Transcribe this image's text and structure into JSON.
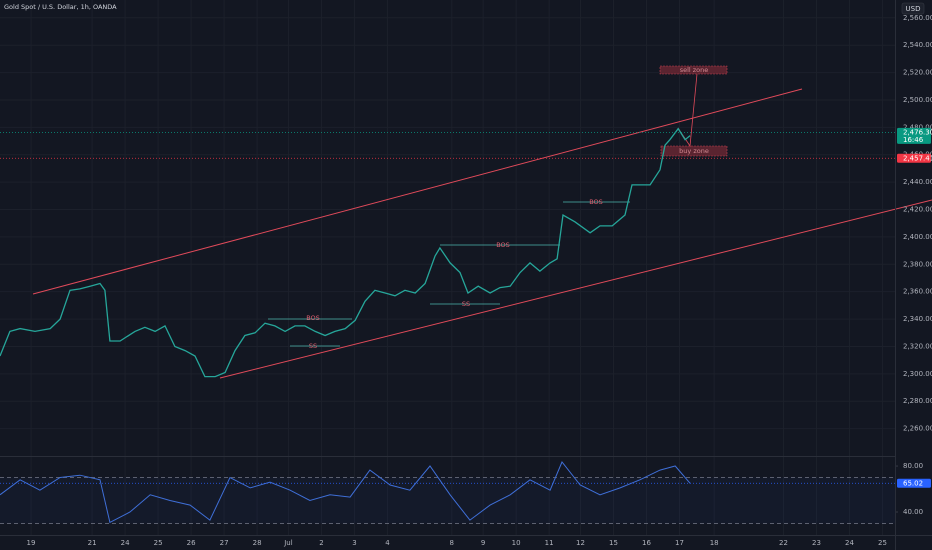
{
  "header": {
    "title": "Gold Spot / U.S. Dollar, 1h, OANDA",
    "currency": "USD"
  },
  "annotations": {
    "bos": [
      "BOS",
      "BOS",
      "BOS"
    ],
    "ss": [
      "SS",
      "SS"
    ],
    "sell_zone": "sell zone",
    "buy_zone": "buy zone",
    "countdown": "16:46"
  },
  "chart_data": [
    {
      "type": "line",
      "color": "#26a69a",
      "grid": true,
      "x": [
        -0.94,
        -0.64,
        -0.33,
        0.12,
        0.58,
        0.88,
        1.18,
        1.48,
        1.79,
        2.09,
        2.24,
        2.39,
        2.7,
        3.15,
        3.45,
        3.76,
        4.06,
        4.36,
        4.67,
        4.97,
        5.27,
        5.58,
        5.88,
        6.18,
        6.48,
        6.79,
        7.09,
        7.39,
        7.7,
        8,
        8.3,
        8.61,
        8.91,
        9.21,
        9.52,
        9.82,
        10.12,
        10.42,
        10.73,
        11.03,
        11.33,
        11.64,
        11.94,
        12.24,
        12.39,
        12.7,
        13,
        13.24,
        13.55,
        13.91,
        14.21,
        14.52,
        14.82,
        15.12,
        15.42,
        15.73,
        15.94,
        16.12,
        16.48,
        16.94,
        17.24,
        17.61,
        18,
        18.21,
        18.45,
        18.76,
        19.06,
        19.21,
        19.36,
        19.61,
        19.82,
        19.97
      ],
      "values": [
        2313,
        2331,
        2333,
        2331,
        2333,
        2340,
        2361,
        2362,
        2364,
        2366,
        2361,
        2324,
        2324,
        2331,
        2334,
        2331,
        2335,
        2320,
        2317,
        2313,
        2298,
        2298,
        2301,
        2317,
        2328,
        2330,
        2337,
        2335,
        2331,
        2335,
        2335,
        2331,
        2328,
        2331,
        2333,
        2339,
        2353,
        2361,
        2359,
        2357,
        2361,
        2359,
        2366,
        2386,
        2392,
        2381,
        2374,
        2359,
        2364,
        2359,
        2363,
        2364,
        2374,
        2381,
        2375,
        2381,
        2384,
        2416,
        2411,
        2403,
        2408,
        2408,
        2416,
        2438,
        2438,
        2438,
        2449,
        2467,
        2471,
        2479,
        2471,
        2474
      ],
      "xlim": [
        -0.94,
        26.18
      ],
      "xticks": [
        {
          "value": 0,
          "label": "19"
        },
        {
          "value": 1.85,
          "label": "21"
        },
        {
          "value": 2.85,
          "label": "24"
        },
        {
          "value": 3.85,
          "label": "25"
        },
        {
          "value": 4.85,
          "label": "26"
        },
        {
          "value": 5.85,
          "label": "27"
        },
        {
          "value": 6.85,
          "label": "28"
        },
        {
          "value": 7.8,
          "label": "Jul"
        },
        {
          "value": 8.8,
          "label": "2"
        },
        {
          "value": 9.8,
          "label": "3"
        },
        {
          "value": 10.8,
          "label": "4"
        },
        {
          "value": 12.75,
          "label": "8"
        },
        {
          "value": 13.7,
          "label": "9"
        },
        {
          "value": 14.7,
          "label": "10"
        },
        {
          "value": 15.7,
          "label": "11"
        },
        {
          "value": 16.65,
          "label": "12"
        },
        {
          "value": 17.65,
          "label": "15"
        },
        {
          "value": 18.65,
          "label": "16"
        },
        {
          "value": 19.65,
          "label": "17"
        },
        {
          "value": 20.7,
          "label": "18"
        },
        {
          "value": 22.8,
          "label": "22"
        },
        {
          "value": 23.8,
          "label": "23"
        },
        {
          "value": 24.8,
          "label": "24"
        },
        {
          "value": 25.8,
          "label": "25"
        }
      ],
      "ylim": [
        2240,
        2573
      ],
      "yticks": [
        {
          "value": 2260,
          "label": "2,260.000"
        },
        {
          "value": 2280,
          "label": "2,280.000"
        },
        {
          "value": 2300,
          "label": "2,300.000"
        },
        {
          "value": 2320,
          "label": "2,320.000"
        },
        {
          "value": 2340,
          "label": "2,340.000"
        },
        {
          "value": 2360,
          "label": "2,360.000"
        },
        {
          "value": 2380,
          "label": "2,380.000"
        },
        {
          "value": 2400,
          "label": "2,400.000"
        },
        {
          "value": 2420,
          "label": "2,420.000"
        },
        {
          "value": 2440,
          "label": "2,440.000"
        },
        {
          "value": 2460,
          "label": "2,460.000"
        },
        {
          "value": 2480,
          "label": "2,480.000"
        },
        {
          "value": 2500,
          "label": "2,500.000"
        },
        {
          "value": 2520,
          "label": "2,520.000"
        },
        {
          "value": 2540,
          "label": "2,540.000"
        },
        {
          "value": 2560,
          "label": "2,560.000"
        }
      ],
      "markers": [
        {
          "value": 2476.305,
          "label": "2,476.305",
          "color": "#089981"
        },
        {
          "value": 2457.413,
          "label": "2,457.413",
          "color": "#f23645"
        }
      ]
    },
    {
      "type": "line",
      "color": "#3f6fd8",
      "x": [
        -0.94,
        -0.33,
        0.27,
        0.88,
        1.48,
        2.09,
        2.39,
        3,
        3.61,
        4.21,
        4.82,
        5.42,
        6.03,
        6.64,
        7.24,
        7.85,
        8.45,
        9.06,
        9.67,
        10.27,
        10.88,
        11.48,
        12.09,
        12.7,
        13.3,
        13.91,
        14.52,
        15.12,
        15.73,
        16.09,
        16.64,
        17.24,
        17.85,
        18.45,
        19.06,
        19.52,
        19.97
      ],
      "values": [
        55,
        68,
        59,
        70,
        72,
        68,
        31,
        40,
        55,
        50,
        46,
        33,
        70,
        61,
        66,
        59,
        50,
        55,
        53,
        76.5,
        63.5,
        59,
        80,
        55,
        33,
        46,
        55,
        68,
        59,
        83.5,
        63.5,
        55,
        61,
        68,
        76.5,
        80,
        65.02
      ],
      "ylim": [
        20,
        87
      ],
      "yticks": [
        {
          "value": 80,
          "label": "80.00"
        },
        {
          "value": 40,
          "label": "40.00"
        }
      ],
      "levels": [
        70,
        30
      ],
      "markers": [
        {
          "value": 65.02,
          "label": "65.02",
          "color": "#2962ff"
        }
      ]
    }
  ]
}
